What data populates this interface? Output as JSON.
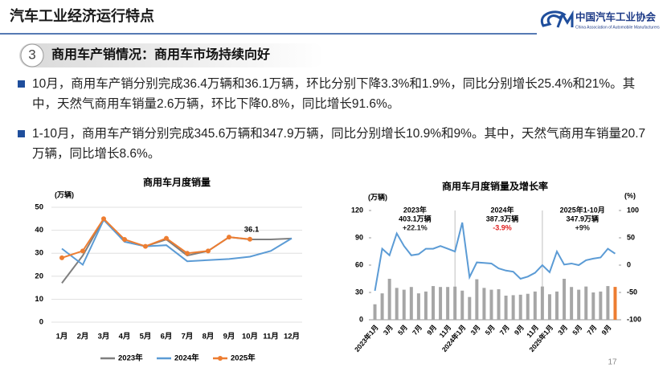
{
  "header": {
    "title": "汽车工业经济运行特点",
    "org": "中国汽车工业协会",
    "org_en": "China Association of Automobile Manufacturers"
  },
  "section": {
    "number": "3",
    "title": "商用车产销情况：商用车市场持续向好"
  },
  "bullets": [
    "10月，商用车产销分别完成36.4万辆和36.1万辆，环比分别下降3.3%和1.9%，同比分别增长25.4%和21%。其中，天然气商用车销量2.6万辆，环比下降0.8%，同比增长91.6%。",
    "1-10月，商用车产销分别完成345.6万辆和347.9万辆，同比分别增长10.9%和9%。其中，天然气商用车销量20.7万辆，同比增长8.6%。"
  ],
  "page_number": "17",
  "chart_data": [
    {
      "type": "line",
      "title": "商用车月度销量",
      "unit": "(万辆)",
      "categories": [
        "1月",
        "2月",
        "3月",
        "4月",
        "5月",
        "6月",
        "7月",
        "8月",
        "9月",
        "10月",
        "11月",
        "12月"
      ],
      "ylim": [
        0,
        50
      ],
      "yticks": [
        0,
        10,
        20,
        30,
        40,
        50
      ],
      "grid": true,
      "legend": "bottom",
      "series": [
        {
          "name": "2023年",
          "color": "#7f7f7f",
          "values": [
            17,
            29,
            45,
            35,
            33,
            36,
            29,
            31,
            37,
            36,
            36,
            36.4
          ]
        },
        {
          "name": "2024年",
          "color": "#5b9bd5",
          "values": [
            32,
            25,
            44.5,
            35,
            33,
            33.5,
            26.5,
            27,
            27.5,
            28.5,
            31,
            36.5
          ]
        },
        {
          "name": "2025年",
          "color": "#ed7d31",
          "marker": true,
          "values": [
            28,
            31,
            45,
            36,
            33,
            36.5,
            30,
            31,
            37,
            36.1,
            null,
            null
          ],
          "value_labels": [
            null,
            null,
            null,
            null,
            null,
            null,
            null,
            null,
            null,
            "36.1",
            null,
            null
          ]
        }
      ]
    },
    {
      "type": "bar_line",
      "title": "商用车月度销量及增长率",
      "unit": "(万辆)",
      "y2_unit": "(%)",
      "categories": [
        "2023年1月",
        null,
        "3月",
        null,
        "5月",
        null,
        "7月",
        null,
        "9月",
        null,
        "11月",
        null,
        "2024年1月",
        null,
        "3月",
        null,
        "5月",
        null,
        "7月",
        null,
        "9月",
        null,
        "11月",
        null,
        "2025年1月",
        null,
        "3月",
        null,
        "5月",
        null,
        "7月",
        null,
        "9月",
        null
      ],
      "ylim": [
        0,
        120
      ],
      "yticks": [
        0,
        30,
        60,
        90,
        120
      ],
      "y2lim": [
        -100,
        100
      ],
      "y2ticks": [
        -100,
        -50,
        0,
        50,
        100
      ],
      "series": [
        {
          "type": "bar",
          "color": "#a6a6a6",
          "highlight_color": "#ed7d31",
          "values": [
            17,
            29,
            45,
            35,
            33,
            36,
            29,
            31,
            37,
            36,
            36,
            36.4,
            32,
            25,
            44.5,
            35,
            33,
            33.5,
            26.5,
            27,
            27.5,
            28.5,
            31,
            36.5,
            28,
            31,
            45,
            36,
            33,
            36.5,
            30,
            31,
            37,
            36.1
          ]
        },
        {
          "type": "line",
          "axis": "y2",
          "color": "#5b9bd5",
          "values": [
            -47,
            30,
            18,
            58,
            35,
            18,
            20,
            30,
            30,
            35,
            30,
            25,
            78,
            -22,
            5,
            4,
            3,
            -6,
            -10,
            -12,
            -25,
            -21,
            -14,
            0,
            -13,
            25,
            1,
            3,
            0,
            9,
            12,
            14,
            30,
            21
          ]
        }
      ],
      "annotations": [
        {
          "year": "2023年",
          "volume": "403.1万辆",
          "rate": "+22.1%",
          "rate_color": "#222222"
        },
        {
          "year": "2024年",
          "volume": "387.3万辆",
          "rate": "-3.9%",
          "rate_color": "#e02020"
        },
        {
          "year": "2025年1-10月",
          "volume": "347.9万辆",
          "rate": "+9%",
          "rate_color": "#222222"
        }
      ]
    }
  ]
}
